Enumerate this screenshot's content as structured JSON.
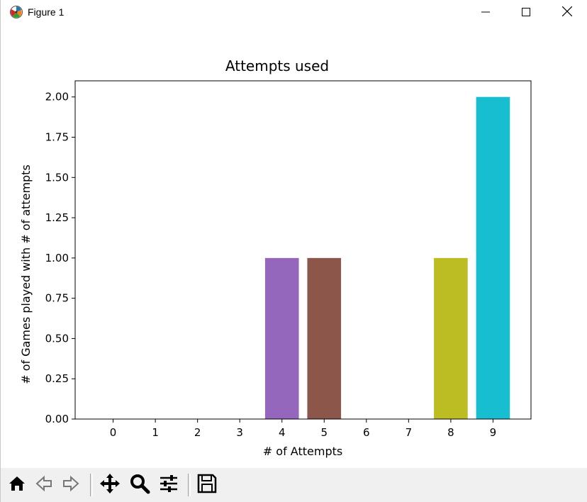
{
  "window": {
    "title": "Figure 1",
    "icons": {
      "app": "matplotlib-icon",
      "minimize": "minimize-icon",
      "maximize": "maximize-icon",
      "close": "close-icon"
    }
  },
  "toolbar": {
    "buttons": [
      {
        "name": "home-button",
        "icon": "home-icon"
      },
      {
        "name": "back-button",
        "icon": "back-arrow-icon"
      },
      {
        "name": "forward-button",
        "icon": "forward-arrow-icon"
      },
      {
        "name": "pan-button",
        "icon": "pan-move-icon"
      },
      {
        "name": "zoom-button",
        "icon": "zoom-magnifier-icon"
      },
      {
        "name": "configure-subplots-button",
        "icon": "sliders-icon"
      },
      {
        "name": "save-button",
        "icon": "save-disk-icon"
      }
    ]
  },
  "chart_data": {
    "type": "bar",
    "title": "Attempts used",
    "xlabel": "# of Attempts",
    "ylabel": "# of Games played with # of attempts",
    "categories": [
      "0",
      "1",
      "2",
      "3",
      "4",
      "5",
      "6",
      "7",
      "8",
      "9"
    ],
    "values": [
      0,
      0,
      0,
      0,
      1,
      1,
      0,
      0,
      1,
      2
    ],
    "colors": [
      "#1f77b4",
      "#ff7f0e",
      "#2ca02c",
      "#d62728",
      "#9467bd",
      "#8c564b",
      "#e377c2",
      "#7f7f7f",
      "#bcbd22",
      "#17becf"
    ],
    "ylim": [
      0,
      2.1
    ],
    "yticks": [
      "0.00",
      "0.25",
      "0.50",
      "0.75",
      "1.00",
      "1.25",
      "1.50",
      "1.75",
      "2.00"
    ],
    "ytick_values": [
      0,
      0.25,
      0.5,
      0.75,
      1.0,
      1.25,
      1.5,
      1.75,
      2.0
    ],
    "grid": false,
    "legend": "none"
  }
}
